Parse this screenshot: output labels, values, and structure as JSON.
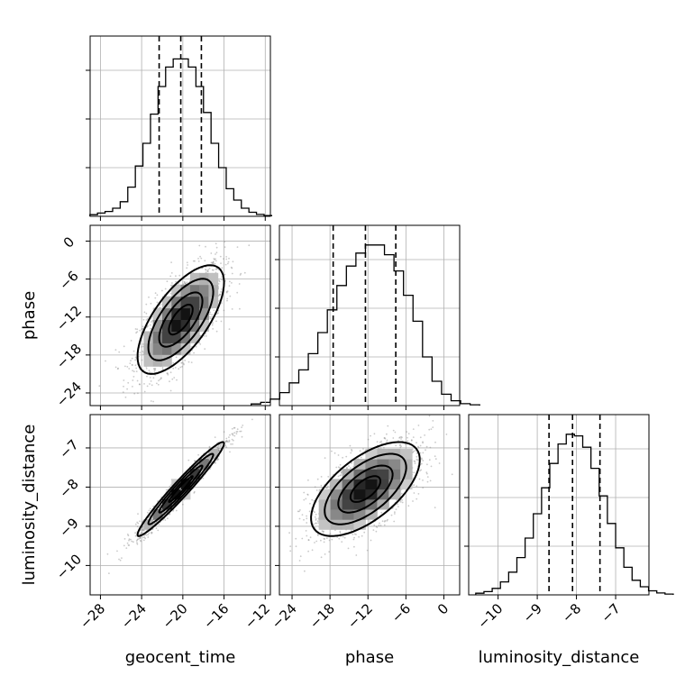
{
  "chart_data": {
    "type": "corner",
    "grid": true,
    "parameters": [
      {
        "name": "geocent_time",
        "xlabel": "geocent_time",
        "lim": [
          -29,
          -11.5
        ],
        "ticks": [
          -28,
          -24,
          -20,
          -16,
          -12
        ],
        "tick_labels": [
          "−28",
          "−24",
          "−20",
          "−16",
          "−12"
        ],
        "mean": -20.2,
        "sd": 2.1,
        "quantiles": [
          -22.3,
          -20.2,
          -18.2
        ]
      },
      {
        "name": "phase",
        "xlabel": "phase",
        "ylabel": "phase",
        "lim": [
          -26,
          2.5
        ],
        "ticks": [
          -24,
          -18,
          -12,
          -6,
          0
        ],
        "tick_labels": [
          "−24",
          "−18",
          "−12",
          "−6",
          "0"
        ],
        "mean": -12.4,
        "sd": 4.3,
        "quantiles": [
          -17.5,
          -12.4,
          -7.6
        ]
      },
      {
        "name": "luminosity_distance",
        "xlabel": "luminosity_distance",
        "ylabel": "luminosity_distance",
        "lim": [
          -10.75,
          -6.15
        ],
        "ticks": [
          -10,
          -9,
          -8,
          -7
        ],
        "tick_labels": [
          "−10",
          "−9",
          "−8",
          "−7"
        ],
        "mean": -8.05,
        "sd": 0.6,
        "quantiles": [
          -8.7,
          -8.1,
          -7.4
        ]
      }
    ],
    "correlations": {
      "1_0": 0.68,
      "2_0": 0.97,
      "2_1": 0.62
    },
    "histograms": {
      "geocent_time": [
        0.01,
        0.02,
        0.03,
        0.05,
        0.09,
        0.18,
        0.31,
        0.45,
        0.63,
        0.8,
        0.92,
        0.97,
        0.97,
        0.92,
        0.8,
        0.64,
        0.45,
        0.3,
        0.17,
        0.1,
        0.05,
        0.025,
        0.012,
        0.005
      ],
      "phase": [
        0.01,
        0.02,
        0.04,
        0.08,
        0.14,
        0.22,
        0.32,
        0.45,
        0.59,
        0.74,
        0.86,
        0.94,
        0.99,
        0.99,
        0.93,
        0.83,
        0.68,
        0.52,
        0.3,
        0.15,
        0.07,
        0.03,
        0.012,
        0.005
      ],
      "luminosity_distance": [
        0.01,
        0.02,
        0.04,
        0.08,
        0.14,
        0.23,
        0.35,
        0.5,
        0.66,
        0.81,
        0.93,
        0.99,
        0.98,
        0.91,
        0.78,
        0.61,
        0.44,
        0.29,
        0.17,
        0.09,
        0.05,
        0.025,
        0.012,
        0.005
      ]
    }
  }
}
